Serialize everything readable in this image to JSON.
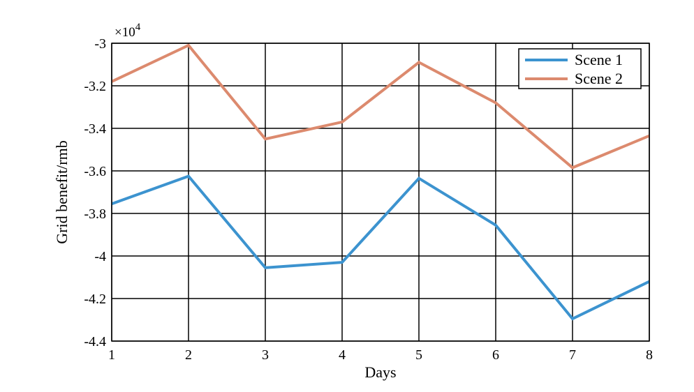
{
  "chart_data": {
    "type": "line",
    "xlabel": "Days",
    "ylabel": "Grid benefit/rmb",
    "x": [
      1,
      2,
      3,
      4,
      5,
      6,
      7,
      8
    ],
    "x_tick_labels": [
      "1",
      "2",
      "3",
      "4",
      "5",
      "6",
      "7",
      "8"
    ],
    "y_tick_values": [
      -3.0,
      -3.2,
      -3.4,
      -3.6,
      -3.8,
      -4.0,
      -4.2,
      -4.4
    ],
    "y_tick_labels": [
      "-3",
      "-3.2",
      "-3.4",
      "-3.6",
      "-3.8",
      "-4",
      "-4.2",
      "-4.4"
    ],
    "y_exponent": {
      "base": "×10",
      "power": "4"
    },
    "xlim": [
      1,
      8
    ],
    "ylim": [
      -4.4,
      -3.0
    ],
    "grid": true,
    "legend_position": "top-right",
    "series": [
      {
        "name": "Scene 1",
        "color": "#3c93cf",
        "values": [
          -3.755,
          -3.625,
          -4.055,
          -4.03,
          -3.635,
          -3.855,
          -4.295,
          -4.12
        ]
      },
      {
        "name": "Scene 2",
        "color": "#dc8a6e",
        "values": [
          -3.18,
          -3.01,
          -3.45,
          -3.37,
          -3.09,
          -3.28,
          -3.585,
          -3.435
        ]
      }
    ]
  }
}
